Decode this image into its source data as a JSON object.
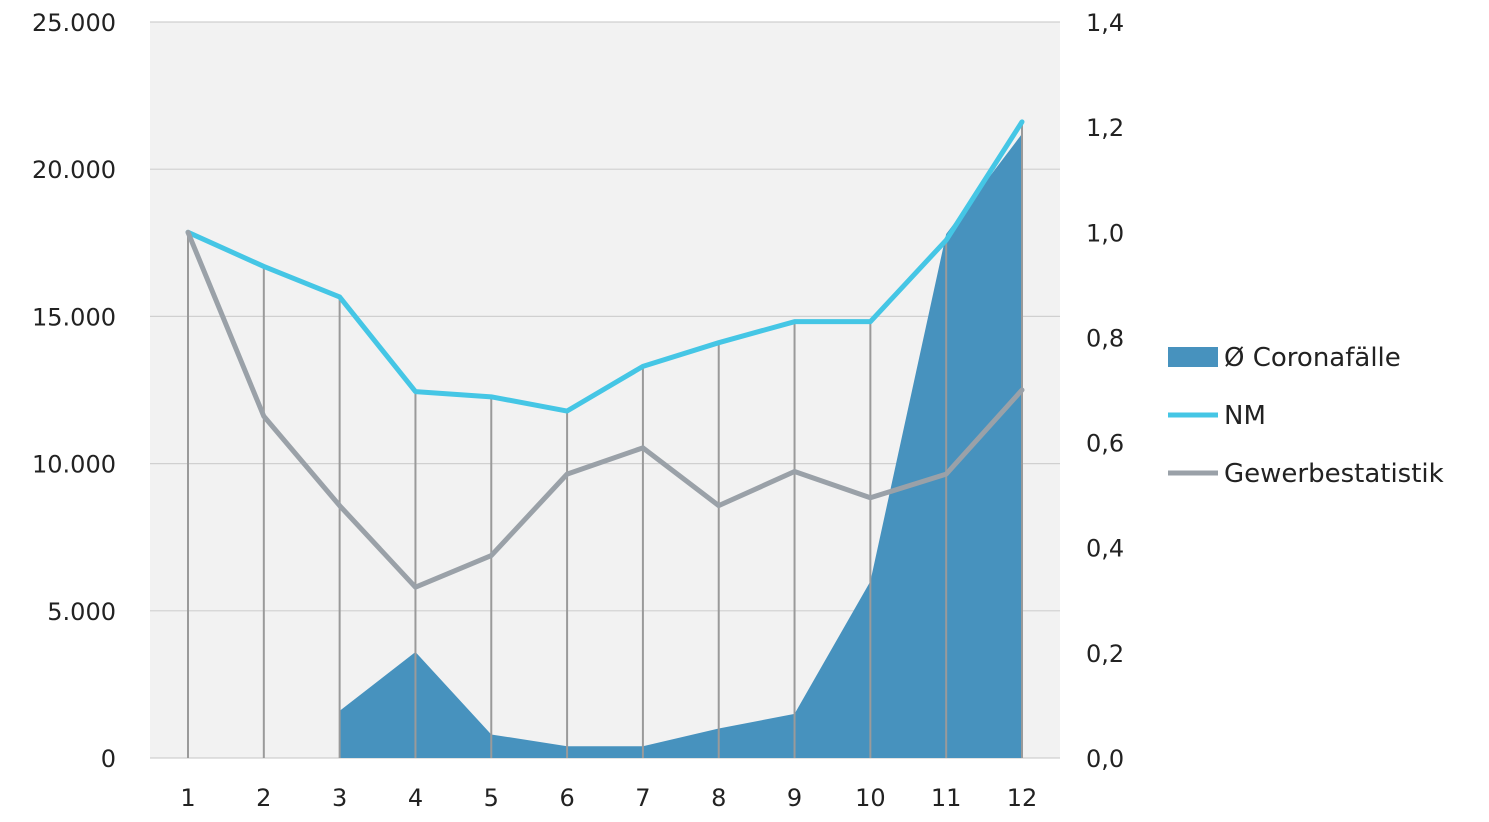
{
  "chart_data": {
    "type": "area",
    "categories": [
      "1",
      "2",
      "3",
      "4",
      "5",
      "6",
      "7",
      "8",
      "9",
      "10",
      "11",
      "12"
    ],
    "y_left": {
      "ylim": [
        0,
        25000
      ],
      "ticks": [
        0,
        5000,
        10000,
        15000,
        20000,
        25000
      ],
      "tick_labels": [
        "0",
        "5.000",
        "10.000",
        "15.000",
        "20.000",
        "25.000"
      ]
    },
    "y_right": {
      "ylim": [
        0,
        1.4
      ],
      "ticks": [
        0,
        0.2,
        0.4,
        0.6,
        0.8,
        1.0,
        1.2,
        1.4
      ],
      "tick_labels": [
        "0,0",
        "0,2",
        "0,4",
        "0,6",
        "0,8",
        "1,0",
        "1,2",
        "1,4"
      ]
    },
    "series": [
      {
        "name": "Ø Coronafälle",
        "kind": "area",
        "axis": "left",
        "values": [
          null,
          null,
          1600,
          3600,
          800,
          400,
          400,
          1000,
          1500,
          6000,
          17800,
          21200
        ]
      },
      {
        "name": "NM",
        "kind": "line",
        "axis": "right",
        "values": [
          1.0,
          0.935,
          0.877,
          0.697,
          0.687,
          0.66,
          0.745,
          0.79,
          0.83,
          0.83,
          0.985,
          1.21
        ]
      },
      {
        "name": "Gewerbestatistik",
        "kind": "line",
        "axis": "right",
        "values": [
          1.0,
          0.65,
          0.48,
          0.325,
          0.385,
          0.54,
          0.59,
          0.48,
          0.545,
          0.495,
          0.54,
          0.7
        ]
      }
    ],
    "grid": true,
    "legend_position": "right",
    "colors": {
      "area": "#4792be",
      "NM": "#45c6e5",
      "Gewerbestatistik": "#9aa1a8",
      "plot_bg": "#f2f2f2",
      "grid": "#d0d0d0",
      "drop_lines": "#9a9a9a"
    }
  }
}
